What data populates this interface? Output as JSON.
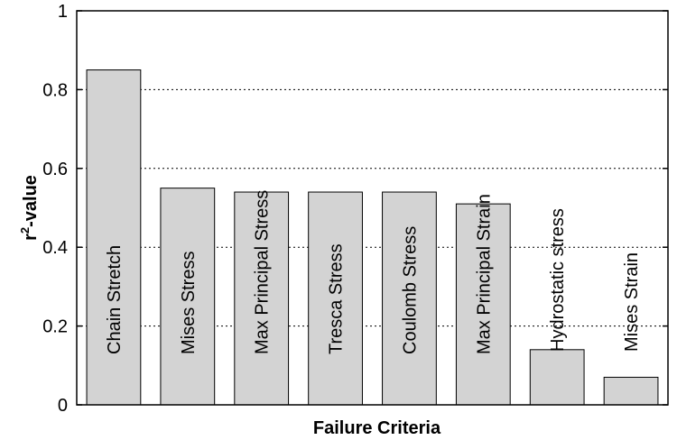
{
  "chart_data": {
    "type": "bar",
    "categories": [
      "Chain Stretch",
      "Mises Stress",
      "Max Principal Stress",
      "Tresca Stress",
      "Coulomb Stress",
      "Max Principal Strain",
      "Hydrostatic stress",
      "Mises Strain"
    ],
    "values": [
      0.85,
      0.55,
      0.54,
      0.54,
      0.54,
      0.51,
      0.14,
      0.07
    ],
    "xlabel": "Failure Criteria",
    "ylabel_main": "r",
    "ylabel_sup": "2",
    "ylabel_rest": "-value",
    "ylim": [
      0,
      1
    ],
    "yticks": [
      "0",
      "0.2",
      "0.4",
      "0.6",
      "0.8",
      "1"
    ],
    "grid": "horizontal dotted",
    "bar_color": "#d3d3d3",
    "bar_edge_color": "#000000"
  }
}
